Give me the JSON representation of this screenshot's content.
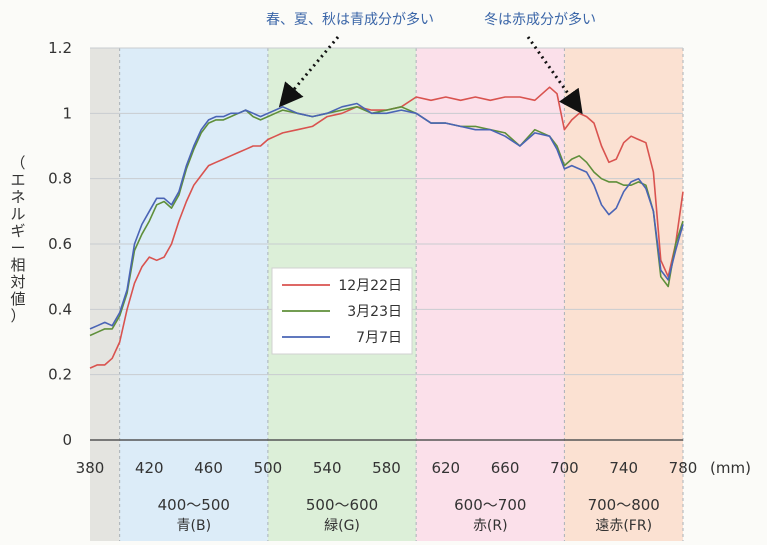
{
  "chart_data": {
    "type": "line",
    "title": "",
    "ylabel": "（エネルギー相対値）",
    "xunit": "(mm)",
    "xlim": [
      380,
      780
    ],
    "ylim": [
      0,
      1.2
    ],
    "x_ticks": [
      380,
      420,
      460,
      500,
      540,
      580,
      620,
      660,
      700,
      740,
      780
    ],
    "y_ticks": [
      0,
      0.2,
      0.4,
      0.6,
      0.8,
      1,
      1.2
    ],
    "grid": true,
    "legend_position": "center",
    "colors": {
      "12月22日": "#d9534f",
      "3月23日": "#5f8f3a",
      "7月7日": "#4a64b5"
    },
    "bands": [
      {
        "from": 380,
        "to": 400,
        "color": "#e4e4e0",
        "label": "",
        "sublabel": ""
      },
      {
        "from": 400,
        "to": 500,
        "color": "#dcecf8",
        "label": "400～500",
        "sublabel": "青(B)"
      },
      {
        "from": 500,
        "to": 600,
        "color": "#dcefd8",
        "label": "500～600",
        "sublabel": "緑(G)"
      },
      {
        "from": 600,
        "to": 700,
        "color": "#fbe0ea",
        "label": "600～700",
        "sublabel": "赤(R)"
      },
      {
        "from": 700,
        "to": 780,
        "color": "#fbe1d2",
        "label": "700～800",
        "sublabel": "遠赤(FR)"
      }
    ],
    "annotations": [
      {
        "text": "春、夏、秋は青成分が多い",
        "target": [
          510,
          1.02
        ]
      },
      {
        "text": "冬は赤成分が多い",
        "target": [
          710,
          1.0
        ]
      }
    ],
    "series": [
      {
        "name": "12月22日",
        "x": [
          380,
          385,
          390,
          395,
          400,
          405,
          410,
          415,
          420,
          425,
          430,
          435,
          440,
          445,
          450,
          455,
          460,
          465,
          470,
          475,
          480,
          485,
          490,
          495,
          500,
          505,
          510,
          520,
          530,
          540,
          550,
          560,
          570,
          580,
          590,
          600,
          610,
          620,
          630,
          640,
          650,
          660,
          670,
          680,
          690,
          695,
          700,
          705,
          710,
          715,
          720,
          725,
          730,
          735,
          740,
          745,
          750,
          755,
          760,
          765,
          770,
          775,
          780
        ],
        "y": [
          0.22,
          0.23,
          0.23,
          0.25,
          0.3,
          0.4,
          0.48,
          0.53,
          0.56,
          0.55,
          0.56,
          0.6,
          0.67,
          0.73,
          0.78,
          0.81,
          0.84,
          0.85,
          0.86,
          0.87,
          0.88,
          0.89,
          0.9,
          0.9,
          0.92,
          0.93,
          0.94,
          0.95,
          0.96,
          0.99,
          1.0,
          1.02,
          1.01,
          1.01,
          1.02,
          1.05,
          1.04,
          1.05,
          1.04,
          1.05,
          1.04,
          1.05,
          1.05,
          1.04,
          1.08,
          1.06,
          0.95,
          0.98,
          1.0,
          0.99,
          0.97,
          0.9,
          0.85,
          0.86,
          0.91,
          0.93,
          0.92,
          0.91,
          0.82,
          0.55,
          0.5,
          0.6,
          0.76
        ]
      },
      {
        "name": "3月23日",
        "x": [
          380,
          385,
          390,
          395,
          400,
          405,
          410,
          415,
          420,
          425,
          430,
          435,
          440,
          445,
          450,
          455,
          460,
          465,
          470,
          475,
          480,
          485,
          490,
          495,
          500,
          505,
          510,
          520,
          530,
          540,
          550,
          560,
          570,
          580,
          590,
          600,
          610,
          620,
          630,
          640,
          650,
          660,
          670,
          680,
          690,
          695,
          700,
          705,
          710,
          715,
          720,
          725,
          730,
          735,
          740,
          745,
          750,
          755,
          760,
          765,
          770,
          775,
          780
        ],
        "y": [
          0.32,
          0.33,
          0.34,
          0.34,
          0.38,
          0.45,
          0.58,
          0.63,
          0.67,
          0.72,
          0.73,
          0.71,
          0.75,
          0.83,
          0.89,
          0.94,
          0.97,
          0.98,
          0.98,
          0.99,
          1.0,
          1.01,
          0.99,
          0.98,
          0.99,
          1.0,
          1.01,
          1.0,
          0.99,
          1.0,
          1.01,
          1.02,
          1.0,
          1.01,
          1.02,
          1.0,
          0.97,
          0.97,
          0.96,
          0.96,
          0.95,
          0.94,
          0.9,
          0.95,
          0.93,
          0.9,
          0.84,
          0.86,
          0.87,
          0.85,
          0.82,
          0.8,
          0.79,
          0.79,
          0.78,
          0.78,
          0.79,
          0.78,
          0.7,
          0.5,
          0.47,
          0.6,
          0.67
        ]
      },
      {
        "name": "7月7日",
        "x": [
          380,
          385,
          390,
          395,
          400,
          405,
          410,
          415,
          420,
          425,
          430,
          435,
          440,
          445,
          450,
          455,
          460,
          465,
          470,
          475,
          480,
          485,
          490,
          495,
          500,
          505,
          510,
          520,
          530,
          540,
          550,
          560,
          570,
          580,
          590,
          600,
          610,
          620,
          630,
          640,
          650,
          660,
          670,
          680,
          690,
          695,
          700,
          705,
          710,
          715,
          720,
          725,
          730,
          735,
          740,
          745,
          750,
          755,
          760,
          765,
          770,
          775,
          780
        ],
        "y": [
          0.34,
          0.35,
          0.36,
          0.35,
          0.39,
          0.46,
          0.6,
          0.66,
          0.7,
          0.74,
          0.74,
          0.72,
          0.76,
          0.84,
          0.9,
          0.95,
          0.98,
          0.99,
          0.99,
          1.0,
          1.0,
          1.01,
          1.0,
          0.99,
          1.0,
          1.01,
          1.02,
          1.0,
          0.99,
          1.0,
          1.02,
          1.03,
          1.0,
          1.0,
          1.01,
          1.0,
          0.97,
          0.97,
          0.96,
          0.95,
          0.95,
          0.93,
          0.9,
          0.94,
          0.93,
          0.89,
          0.83,
          0.84,
          0.83,
          0.82,
          0.78,
          0.72,
          0.69,
          0.71,
          0.76,
          0.79,
          0.8,
          0.77,
          0.7,
          0.52,
          0.49,
          0.58,
          0.66
        ]
      }
    ]
  }
}
